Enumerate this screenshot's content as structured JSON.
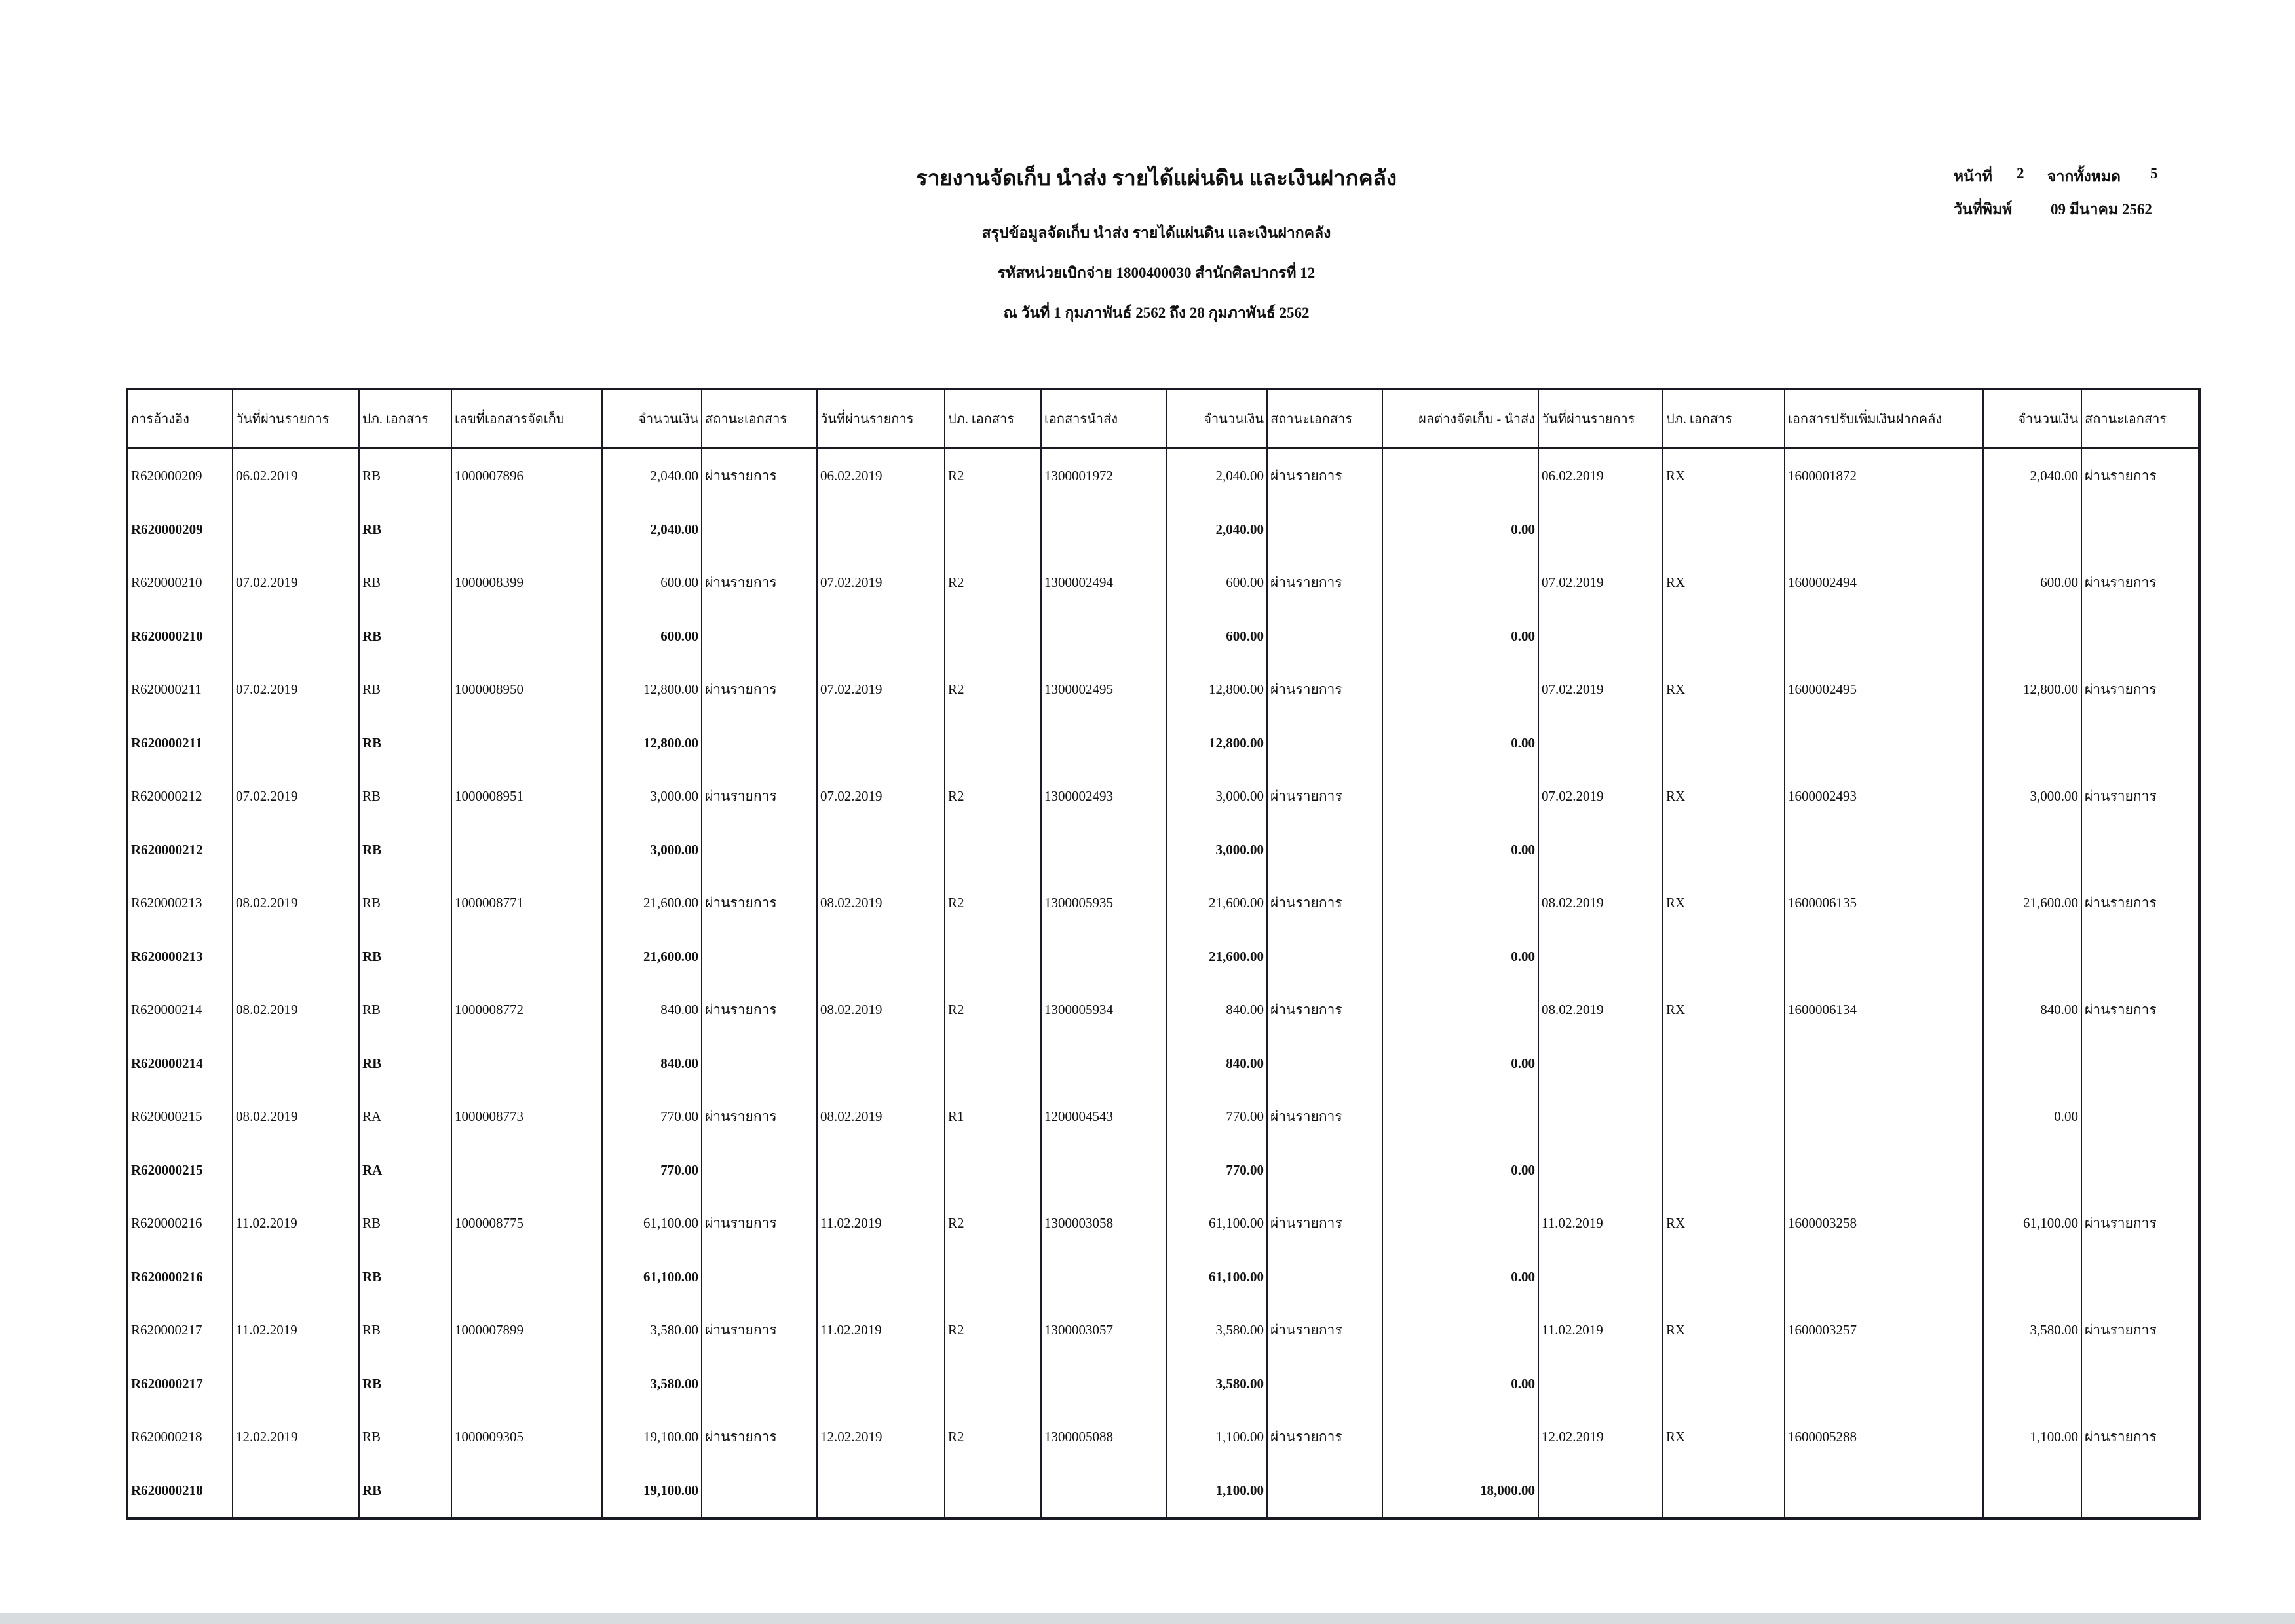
{
  "report": {
    "title": "รายงานจัดเก็บ นำส่ง รายได้แผ่นดิน และเงินฝากคลัง",
    "subtitle": "สรุปข้อมูลจัดเก็บ นำส่ง รายได้แผ่นดิน และเงินฝากคลัง",
    "unit_line": "รหัสหน่วยเบิกจ่าย 1800400030 สำนักศิลปากรที่ 12",
    "period_line": "ณ วันที่ 1 กุมภาพันธ์ 2562 ถึง 28 กุมภาพันธ์ 2562",
    "page_label": "หน้าที่",
    "page_number": "2",
    "of_label": "จากทั้งหมด",
    "total_pages": "5",
    "print_date_label": "วันที่พิมพ์",
    "print_date": "09 มีนาคม 2562"
  },
  "table": {
    "columns": [
      "การอ้างอิง",
      "วันที่ผ่านรายการ",
      "ปภ. เอกสาร",
      "เลขที่เอกสารจัดเก็บ",
      "จำนวนเงิน",
      "สถานะเอกสาร",
      "วันที่ผ่านรายการ",
      "ปภ. เอกสาร",
      "เอกสารนำส่ง",
      "จำนวนเงิน",
      "สถานะเอกสาร",
      "ผลต่างจัดเก็บ - นำส่ง",
      "วันที่ผ่านรายการ",
      "ปภ. เอกสาร",
      "เอกสารปรับเพิ่มเงินฝากคลัง",
      "จำนวนเงิน",
      "สถานะเอกสาร"
    ],
    "rows": [
      {
        "total": false,
        "cells": [
          "R620000209",
          "06.02.2019",
          "RB",
          "1000007896",
          "2,040.00",
          "ผ่านรายการ",
          "06.02.2019",
          "R2",
          "1300001972",
          "2,040.00",
          "ผ่านรายการ",
          "",
          "06.02.2019",
          "RX",
          "1600001872",
          "2,040.00",
          "ผ่านรายการ"
        ]
      },
      {
        "total": true,
        "cells": [
          "R620000209",
          "",
          "RB",
          "",
          "2,040.00",
          "",
          "",
          "",
          "",
          "2,040.00",
          "",
          "0.00",
          "",
          "",
          "",
          "",
          ""
        ]
      },
      {
        "total": false,
        "cells": [
          "R620000210",
          "07.02.2019",
          "RB",
          "1000008399",
          "600.00",
          "ผ่านรายการ",
          "07.02.2019",
          "R2",
          "1300002494",
          "600.00",
          "ผ่านรายการ",
          "",
          "07.02.2019",
          "RX",
          "1600002494",
          "600.00",
          "ผ่านรายการ"
        ]
      },
      {
        "total": true,
        "cells": [
          "R620000210",
          "",
          "RB",
          "",
          "600.00",
          "",
          "",
          "",
          "",
          "600.00",
          "",
          "0.00",
          "",
          "",
          "",
          "",
          ""
        ]
      },
      {
        "total": false,
        "cells": [
          "R620000211",
          "07.02.2019",
          "RB",
          "1000008950",
          "12,800.00",
          "ผ่านรายการ",
          "07.02.2019",
          "R2",
          "1300002495",
          "12,800.00",
          "ผ่านรายการ",
          "",
          "07.02.2019",
          "RX",
          "1600002495",
          "12,800.00",
          "ผ่านรายการ"
        ]
      },
      {
        "total": true,
        "cells": [
          "R620000211",
          "",
          "RB",
          "",
          "12,800.00",
          "",
          "",
          "",
          "",
          "12,800.00",
          "",
          "0.00",
          "",
          "",
          "",
          "",
          ""
        ]
      },
      {
        "total": false,
        "cells": [
          "R620000212",
          "07.02.2019",
          "RB",
          "1000008951",
          "3,000.00",
          "ผ่านรายการ",
          "07.02.2019",
          "R2",
          "1300002493",
          "3,000.00",
          "ผ่านรายการ",
          "",
          "07.02.2019",
          "RX",
          "1600002493",
          "3,000.00",
          "ผ่านรายการ"
        ]
      },
      {
        "total": true,
        "cells": [
          "R620000212",
          "",
          "RB",
          "",
          "3,000.00",
          "",
          "",
          "",
          "",
          "3,000.00",
          "",
          "0.00",
          "",
          "",
          "",
          "",
          ""
        ]
      },
      {
        "total": false,
        "cells": [
          "R620000213",
          "08.02.2019",
          "RB",
          "1000008771",
          "21,600.00",
          "ผ่านรายการ",
          "08.02.2019",
          "R2",
          "1300005935",
          "21,600.00",
          "ผ่านรายการ",
          "",
          "08.02.2019",
          "RX",
          "1600006135",
          "21,600.00",
          "ผ่านรายการ"
        ]
      },
      {
        "total": true,
        "cells": [
          "R620000213",
          "",
          "RB",
          "",
          "21,600.00",
          "",
          "",
          "",
          "",
          "21,600.00",
          "",
          "0.00",
          "",
          "",
          "",
          "",
          ""
        ]
      },
      {
        "total": false,
        "cells": [
          "R620000214",
          "08.02.2019",
          "RB",
          "1000008772",
          "840.00",
          "ผ่านรายการ",
          "08.02.2019",
          "R2",
          "1300005934",
          "840.00",
          "ผ่านรายการ",
          "",
          "08.02.2019",
          "RX",
          "1600006134",
          "840.00",
          "ผ่านรายการ"
        ]
      },
      {
        "total": true,
        "cells": [
          "R620000214",
          "",
          "RB",
          "",
          "840.00",
          "",
          "",
          "",
          "",
          "840.00",
          "",
          "0.00",
          "",
          "",
          "",
          "",
          ""
        ]
      },
      {
        "total": false,
        "cells": [
          "R620000215",
          "08.02.2019",
          "RA",
          "1000008773",
          "770.00",
          "ผ่านรายการ",
          "08.02.2019",
          "R1",
          "1200004543",
          "770.00",
          "ผ่านรายการ",
          "",
          "",
          "",
          "",
          "0.00",
          ""
        ]
      },
      {
        "total": true,
        "cells": [
          "R620000215",
          "",
          "RA",
          "",
          "770.00",
          "",
          "",
          "",
          "",
          "770.00",
          "",
          "0.00",
          "",
          "",
          "",
          "",
          ""
        ]
      },
      {
        "total": false,
        "cells": [
          "R620000216",
          "11.02.2019",
          "RB",
          "1000008775",
          "61,100.00",
          "ผ่านรายการ",
          "11.02.2019",
          "R2",
          "1300003058",
          "61,100.00",
          "ผ่านรายการ",
          "",
          "11.02.2019",
          "RX",
          "1600003258",
          "61,100.00",
          "ผ่านรายการ"
        ]
      },
      {
        "total": true,
        "cells": [
          "R620000216",
          "",
          "RB",
          "",
          "61,100.00",
          "",
          "",
          "",
          "",
          "61,100.00",
          "",
          "0.00",
          "",
          "",
          "",
          "",
          ""
        ]
      },
      {
        "total": false,
        "cells": [
          "R620000217",
          "11.02.2019",
          "RB",
          "1000007899",
          "3,580.00",
          "ผ่านรายการ",
          "11.02.2019",
          "R2",
          "1300003057",
          "3,580.00",
          "ผ่านรายการ",
          "",
          "11.02.2019",
          "RX",
          "1600003257",
          "3,580.00",
          "ผ่านรายการ"
        ]
      },
      {
        "total": true,
        "cells": [
          "R620000217",
          "",
          "RB",
          "",
          "3,580.00",
          "",
          "",
          "",
          "",
          "3,580.00",
          "",
          "0.00",
          "",
          "",
          "",
          "",
          ""
        ]
      },
      {
        "total": false,
        "cells": [
          "R620000218",
          "12.02.2019",
          "RB",
          "1000009305",
          "19,100.00",
          "ผ่านรายการ",
          "12.02.2019",
          "R2",
          "1300005088",
          "1,100.00",
          "ผ่านรายการ",
          "",
          "12.02.2019",
          "RX",
          "1600005288",
          "1,100.00",
          "ผ่านรายการ"
        ]
      },
      {
        "total": true,
        "cells": [
          "R620000218",
          "",
          "RB",
          "",
          "19,100.00",
          "",
          "",
          "",
          "",
          "1,100.00",
          "",
          "18,000.00",
          "",
          "",
          "",
          "",
          ""
        ]
      }
    ]
  }
}
